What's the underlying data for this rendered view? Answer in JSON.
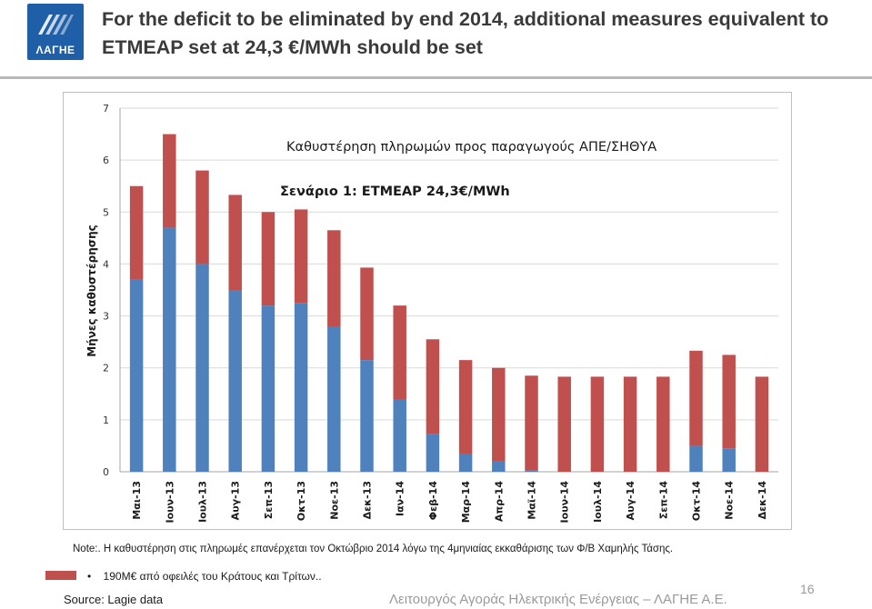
{
  "header": {
    "logo_text": "ΛΑΓΗΕ",
    "title": "For the deficit to be eliminated by end 2014, additional measures equivalent to ETMEAP set at 24,3 €/MWh should be set"
  },
  "colors": {
    "blue": "#4f81bd",
    "red": "#c0504d",
    "grid": "#d9d9d9"
  },
  "chart_data": {
    "type": "bar",
    "stacked": true,
    "title": "Καθυστέρηση πληρωμών προς παραγωγούς ΑΠΕ/ΣΗΘΥΑ",
    "subtitle": "Σενάριο 1: ETMEAP 24,3€/MWh",
    "ylabel": "Μήνες καθυστέρησης",
    "xlabel": "",
    "ylim": [
      0,
      7
    ],
    "yticks": [
      "0",
      "1",
      "2",
      "3",
      "4",
      "5",
      "6",
      "7"
    ],
    "categories": [
      "Μαι-13",
      "Ιουν-13",
      "Ιουλ-13",
      "Αυγ-13",
      "Σεπ-13",
      "Οκτ-13",
      "Νοε-13",
      "Δεκ-13",
      "Ιαν-14",
      "Φεβ-14",
      "Μαρ-14",
      "Απρ-14",
      "Μαϊ-14",
      "Ιουν-14",
      "Ιουλ-14",
      "Αυγ-14",
      "Σεπ-14",
      "Οκτ-14",
      "Νοε-14",
      "Δεκ-14"
    ],
    "series": [
      {
        "name": "blue",
        "color": "#4f81bd",
        "values": [
          3.7,
          4.7,
          4.0,
          3.5,
          3.2,
          3.25,
          2.8,
          2.15,
          1.4,
          0.72,
          0.35,
          0.2,
          0.02,
          0.0,
          0.0,
          0.0,
          0.0,
          0.5,
          0.45,
          0.0
        ]
      },
      {
        "name": "red",
        "color": "#c0504d",
        "values": [
          1.8,
          1.8,
          1.8,
          1.83,
          1.8,
          1.8,
          1.85,
          1.78,
          1.8,
          1.83,
          1.8,
          1.8,
          1.83,
          1.83,
          1.83,
          1.83,
          1.83,
          1.83,
          1.8,
          1.83
        ]
      }
    ]
  },
  "note": "Note:. Η καθυστέρηση στις πληρωμές επανέρχεται τον Οκτώβριο 2014 λόγω της 4μηνιαίας εκκαθάρισης των Φ/Β Χαμηλής Τάσης.",
  "legend": {
    "bullet": "•",
    "red_text": "190Μ€ από οφειλές του Κράτους και Τρίτων.."
  },
  "source": "Source: Lagie data",
  "footer": {
    "org": "Λειτουργός Αγοράς Ηλεκτρικής Ενέργειας – ΛΑΓΗΕ Α.Ε.",
    "page": "16"
  }
}
